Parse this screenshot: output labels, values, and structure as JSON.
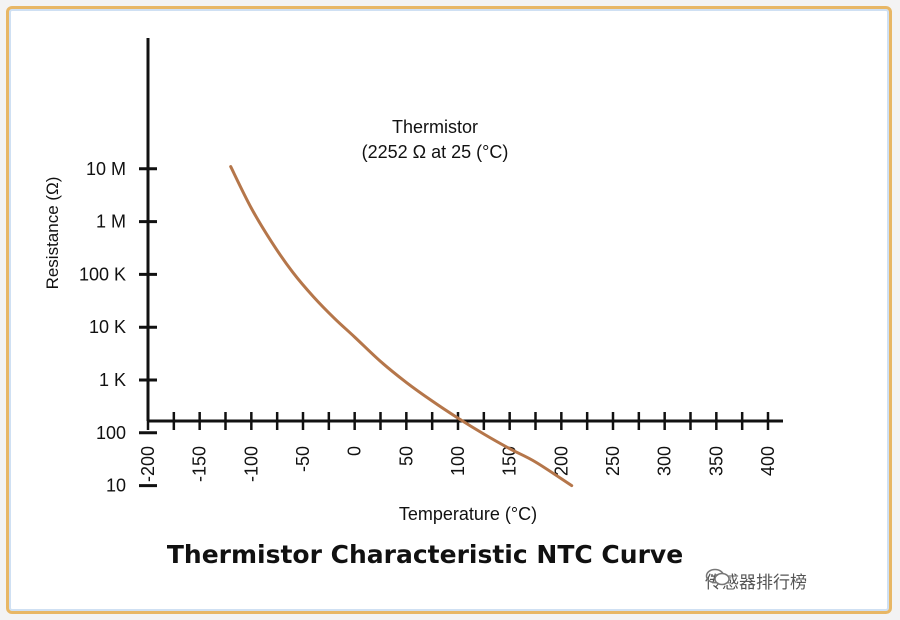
{
  "chart_data": {
    "type": "line",
    "title": "Thermistor Characteristic NTC Curve",
    "xlabel": "Temperature (°C)",
    "ylabel": "Resistance (Ω)",
    "x_ticks": [
      "-200",
      "-150",
      "-100",
      "-50",
      "0",
      "50",
      "100",
      "150",
      "200",
      "250",
      "300",
      "350",
      "400"
    ],
    "y_ticks": [
      "10",
      "100",
      "1 K",
      "10 K",
      "100 K",
      "1 M",
      "10 M"
    ],
    "xlim": [
      -200,
      400
    ],
    "ylim_log10": [
      0.2,
      7.6
    ],
    "y_scale": "log",
    "grid": false,
    "annotation_line1": "Thermistor",
    "annotation_line2": "(2252 Ω at 25 (°C)",
    "series": [
      {
        "color": "#b5764a",
        "x": [
          -120,
          -100,
          -80,
          -60,
          -40,
          -20,
          0,
          25,
          50,
          75,
          100,
          125,
          150,
          175,
          210
        ],
        "y": [
          11000000,
          1800000,
          400000,
          110000,
          38000,
          15000,
          6500,
          2252,
          900,
          400,
          190,
          95,
          50,
          28,
          10
        ]
      }
    ]
  },
  "watermark": "传感器排行榜",
  "colors": {
    "frame": "#e8b765",
    "curve": "#b5764a",
    "axis": "#111111"
  }
}
